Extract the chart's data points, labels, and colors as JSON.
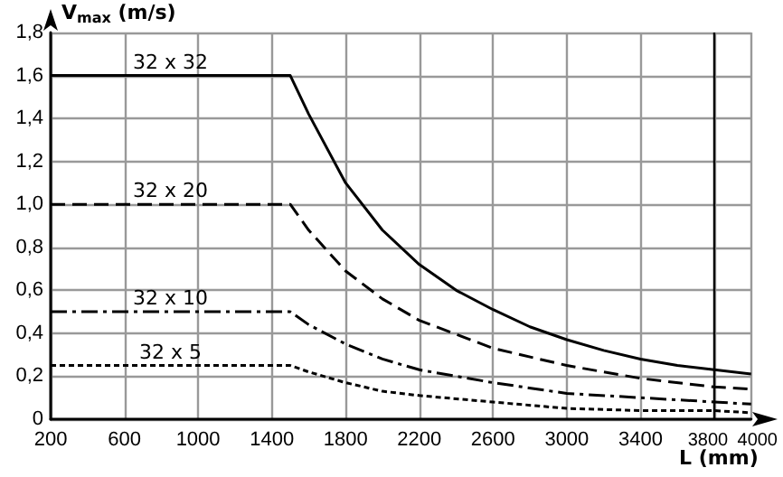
{
  "chart_data": {
    "type": "line",
    "xlabel": "L (mm)",
    "ylabel": "V$_{max}$ (m/s)",
    "xlim": [
      200,
      4000
    ],
    "xticks": [
      200,
      600,
      1000,
      1400,
      1800,
      2200,
      2600,
      3000,
      3400,
      3800,
      4000
    ],
    "ylim": [
      0,
      1.8
    ],
    "yticks": [
      {
        "value": 0,
        "label": "0"
      },
      {
        "value": 0.2,
        "label": "0,2"
      },
      {
        "value": 0.4,
        "label": "0,4"
      },
      {
        "value": 0.6,
        "label": "0,6"
      },
      {
        "value": 0.8,
        "label": "0,8"
      },
      {
        "value": 1,
        "label": "1,0"
      },
      {
        "value": 1.2,
        "label": "1,2"
      },
      {
        "value": 1.4,
        "label": "1,4"
      },
      {
        "value": 1.6,
        "label": "1,6"
      },
      {
        "value": 1.8,
        "label": "1,8"
      }
    ],
    "grid": true,
    "legend": false,
    "marker": "none",
    "ref_lines": [
      {
        "axis": "x",
        "value": 3800,
        "color": "#000000"
      }
    ],
    "series": [
      {
        "name": "32 x 32",
        "color": "#000000",
        "line_style": "solid",
        "x": [
          200,
          1500,
          1600,
          1800,
          2000,
          2200,
          2400,
          2600,
          2800,
          3000,
          3200,
          3400,
          3600,
          3800,
          4000
        ],
        "values": [
          1.6,
          1.6,
          1.42,
          1.1,
          0.88,
          0.72,
          0.6,
          0.51,
          0.43,
          0.37,
          0.32,
          0.28,
          0.25,
          0.23,
          0.21
        ]
      },
      {
        "name": "32 x 20",
        "color": "#000000",
        "line_style": "dashed",
        "x": [
          200,
          1500,
          1600,
          1800,
          2000,
          2200,
          2600,
          3000,
          3400,
          3800,
          4000
        ],
        "values": [
          1,
          1,
          0.88,
          0.69,
          0.56,
          0.46,
          0.33,
          0.25,
          0.19,
          0.15,
          0.14
        ]
      },
      {
        "name": "32 x 10",
        "color": "#000000",
        "line_style": "dashdot",
        "x": [
          200,
          1500,
          1600,
          1800,
          2000,
          2200,
          2600,
          3000,
          3400,
          3800,
          4000
        ],
        "values": [
          0.5,
          0.5,
          0.44,
          0.35,
          0.28,
          0.23,
          0.17,
          0.12,
          0.1,
          0.08,
          0.07
        ]
      },
      {
        "name": "32 x 5",
        "color": "#000000",
        "line_style": "dotted",
        "x": [
          200,
          1500,
          1600,
          1800,
          2000,
          2200,
          2600,
          3000,
          3400,
          3800,
          4000
        ],
        "values": [
          0.25,
          0.25,
          0.22,
          0.17,
          0.13,
          0.11,
          0.08,
          0.05,
          0.04,
          0.04,
          0.03
        ]
      }
    ]
  }
}
